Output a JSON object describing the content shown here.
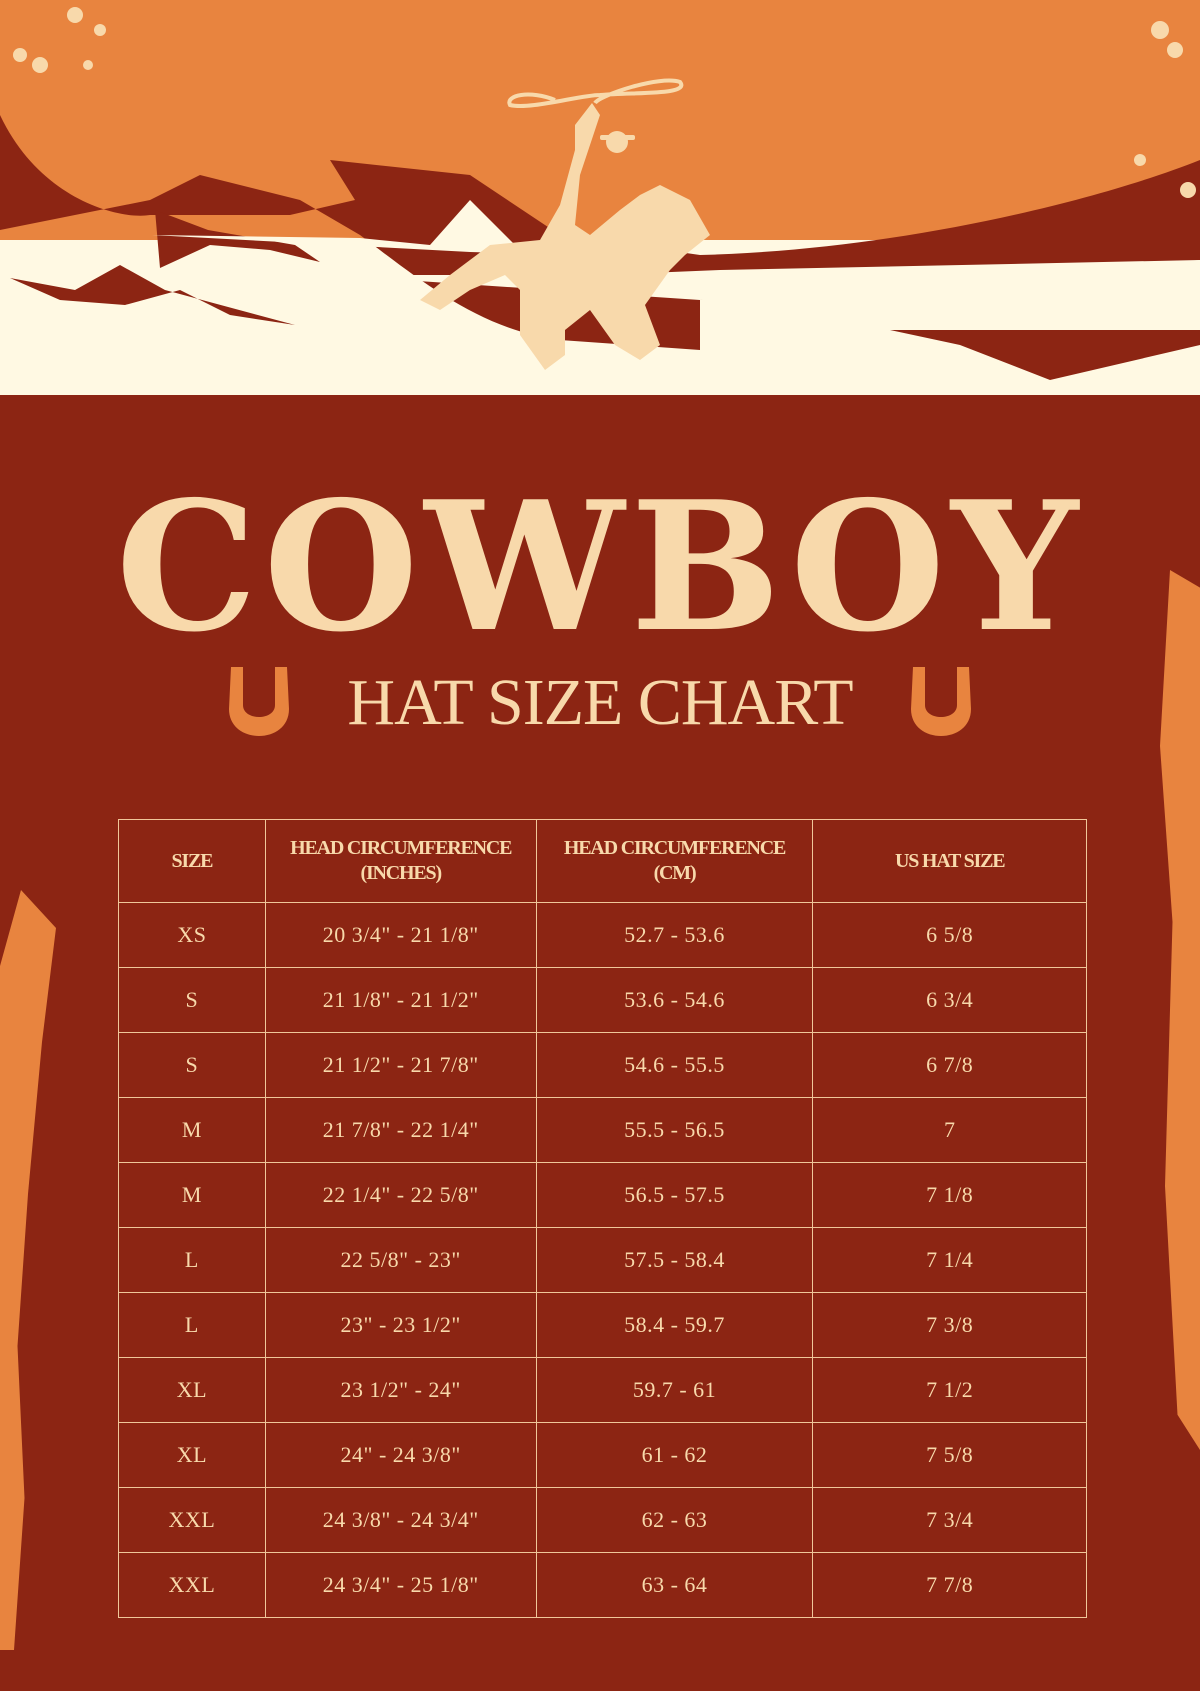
{
  "header": {
    "title": "COWBOY",
    "subtitle": "HAT SIZE CHART"
  },
  "colors": {
    "background": "#8c2513",
    "sky": "#e8843f",
    "cream": "#fff9e3",
    "text": "#f8d9ab",
    "horseshoe": "#e8843f"
  },
  "icons": [
    "cowboy-rider-illustration",
    "horseshoe-icon"
  ],
  "table": {
    "headers": [
      "SIZE",
      "HEAD CIRCUMFERENCE\n(INCHES)",
      "HEAD CIRCUMFERENCE\n(CM)",
      "US HAT SIZE"
    ],
    "rows": [
      [
        "XS",
        "20 3/4\" - 21 1/8\"",
        "52.7 - 53.6",
        "6 5/8"
      ],
      [
        "S",
        "21 1/8\" - 21 1/2\"",
        "53.6 - 54.6",
        "6 3/4"
      ],
      [
        "S",
        "21 1/2\" - 21 7/8\"",
        "54.6 - 55.5",
        "6 7/8"
      ],
      [
        "M",
        "21 7/8\" - 22 1/4\"",
        "55.5 - 56.5",
        "7"
      ],
      [
        "M",
        "22 1/4\" - 22 5/8\"",
        "56.5 - 57.5",
        "7 1/8"
      ],
      [
        "L",
        "22 5/8\" - 23\"",
        "57.5 - 58.4",
        "7 1/4"
      ],
      [
        "L",
        "23\" - 23 1/2\"",
        "58.4 - 59.7",
        "7 3/8"
      ],
      [
        "XL",
        "23 1/2\" - 24\"",
        "59.7 - 61",
        "7 1/2"
      ],
      [
        "XL",
        "24\" - 24 3/8\"",
        "61 - 62",
        "7 5/8"
      ],
      [
        "XXL",
        "24 3/8\" - 24 3/4\"",
        "62 - 63",
        "7 3/4"
      ],
      [
        "XXL",
        "24 3/4\" - 25 1/8\"",
        "63 - 64",
        "7 7/8"
      ]
    ]
  }
}
